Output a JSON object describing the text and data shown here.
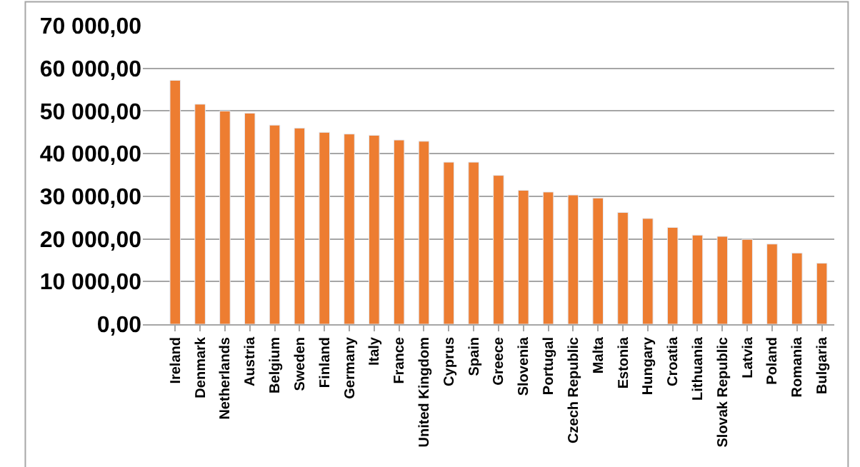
{
  "chart_data": {
    "type": "bar",
    "categories": [
      "Ireland",
      "Denmark",
      "Netherlands",
      "Austria",
      "Belgium",
      "Sweden",
      "Finland",
      "Germany",
      "Italy",
      "France",
      "United Kingdom",
      "Cyprus",
      "Spain",
      "Greece",
      "Slovenia",
      "Portugal",
      "Czech Republic",
      "Malta",
      "Estonia",
      "Hungary",
      "Croatia",
      "Lithuania",
      "Slovak Republic",
      "Latvia",
      "Poland",
      "Romania",
      "Bulgaria"
    ],
    "values": [
      57200,
      51600,
      50000,
      49500,
      46700,
      46000,
      45000,
      44600,
      44300,
      43200,
      42900,
      38000,
      38000,
      34900,
      31400,
      31000,
      30300,
      29600,
      26200,
      24800,
      22700,
      20900,
      20600,
      19900,
      18800,
      16700,
      14300
    ],
    "color": "#ed7d31",
    "ylim": [
      0,
      70000
    ],
    "yticks": [
      {
        "value": 0,
        "label": "0,00"
      },
      {
        "value": 10000,
        "label": "10 000,00"
      },
      {
        "value": 20000,
        "label": "20 000,00"
      },
      {
        "value": 30000,
        "label": "30 000,00"
      },
      {
        "value": 40000,
        "label": "40 000,00"
      },
      {
        "value": 50000,
        "label": "50 000,00"
      },
      {
        "value": 60000,
        "label": "60 000,00"
      },
      {
        "value": 70000,
        "label": "70 000,00"
      }
    ],
    "grid": "y",
    "legend": false
  }
}
